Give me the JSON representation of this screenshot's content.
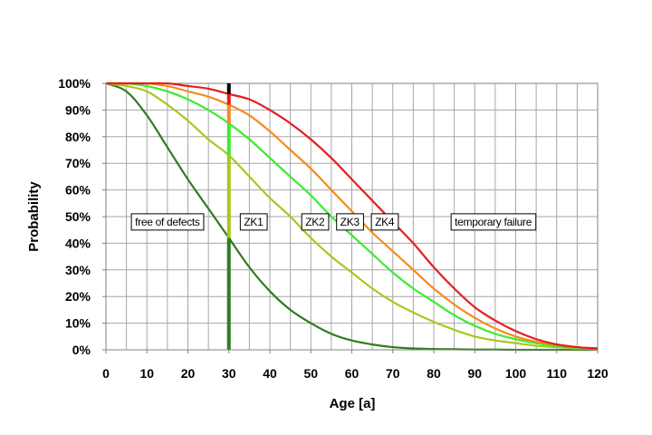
{
  "chart_data": {
    "type": "line",
    "title": "",
    "xlabel": "Age [a]",
    "ylabel": "Probability",
    "xlim": [
      0,
      120
    ],
    "ylim": [
      0,
      100
    ],
    "grid": true,
    "x_ticks": [
      "0",
      "10",
      "20",
      "30",
      "40",
      "50",
      "60",
      "70",
      "80",
      "90",
      "100",
      "110",
      "120"
    ],
    "y_ticks": [
      "0%",
      "10%",
      "20%",
      "30%",
      "40%",
      "50%",
      "60%",
      "70%",
      "80%",
      "90%",
      "100%"
    ],
    "x": [
      0,
      5,
      10,
      15,
      20,
      25,
      30,
      35,
      40,
      45,
      50,
      55,
      60,
      65,
      70,
      75,
      80,
      85,
      90,
      95,
      100,
      105,
      110,
      115,
      120
    ],
    "series": [
      {
        "name": "ZK1",
        "color": "#2E7D1E",
        "values": [
          100,
          97,
          88,
          76,
          64,
          53,
          42,
          31,
          22,
          15,
          10,
          6,
          3.5,
          2,
          1,
          0.5,
          0.3,
          0.2,
          0.1,
          0.1,
          0,
          0,
          0,
          0,
          0
        ]
      },
      {
        "name": "ZK2",
        "color": "#A8C81E",
        "values": [
          100,
          99,
          97,
          92,
          86,
          79,
          73,
          65,
          57,
          50,
          42,
          35,
          29,
          23,
          18,
          14,
          10.5,
          7.5,
          5,
          3.5,
          2.5,
          1.5,
          1,
          0.5,
          0
        ]
      },
      {
        "name": "ZK3",
        "color": "#3CEB2E",
        "values": [
          100,
          100,
          99,
          97,
          94,
          90,
          85,
          79,
          72,
          65,
          58,
          50,
          43,
          36,
          29,
          23,
          18,
          13,
          9,
          6,
          4,
          2.5,
          1.5,
          0.8,
          0.3
        ]
      },
      {
        "name": "ZK4",
        "color": "#F58C19",
        "values": [
          100,
          100,
          100,
          99,
          97,
          95,
          92,
          88,
          82,
          75,
          68,
          60,
          52,
          44,
          37,
          30,
          23,
          17,
          12,
          8,
          5,
          3,
          2,
          1,
          0.5
        ]
      },
      {
        "name": "temporary failure",
        "color": "#E61E1E",
        "values": [
          100,
          100,
          100,
          100,
          99,
          98,
          96,
          94,
          90,
          85,
          79,
          72,
          64,
          56,
          48,
          40,
          31,
          23,
          16,
          11,
          7,
          4,
          2,
          1,
          0.5
        ]
      }
    ],
    "marker_line": {
      "x": 30,
      "segments": [
        {
          "from": 0,
          "to": 42,
          "color": "#2E7D1E"
        },
        {
          "from": 42,
          "to": 73,
          "color": "#A8C81E"
        },
        {
          "from": 73,
          "to": 85,
          "color": "#3CEB2E"
        },
        {
          "from": 85,
          "to": 92,
          "color": "#F58C19"
        },
        {
          "from": 92,
          "to": 96,
          "color": "#E61E1E"
        },
        {
          "from": 96,
          "to": 100,
          "color": "#000000"
        }
      ]
    },
    "annotations": [
      {
        "text": "free of defects",
        "x": 15,
        "y": 48
      },
      {
        "text": "ZK1",
        "x": 36,
        "y": 48
      },
      {
        "text": "ZK2",
        "x": 51,
        "y": 48
      },
      {
        "text": "ZK3",
        "x": 59.5,
        "y": 48
      },
      {
        "text": "ZK4",
        "x": 68,
        "y": 48
      },
      {
        "text": "temporary failure",
        "x": 94.5,
        "y": 48
      }
    ]
  }
}
